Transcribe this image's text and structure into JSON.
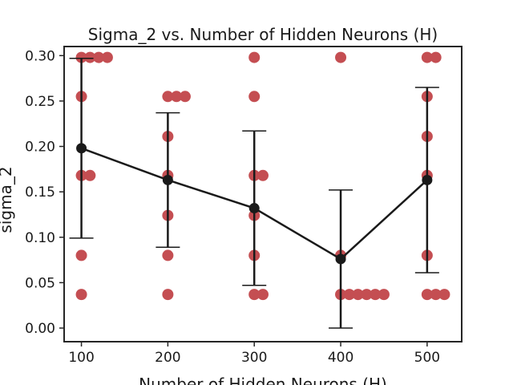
{
  "chart_data": {
    "type": "scatter",
    "title": "Sigma_2 vs. Number of Hidden Neurons (H)",
    "xlabel": "Number of Hidden Neurons (H)",
    "ylabel": "sigma_2",
    "xlim": [
      80,
      540
    ],
    "ylim": [
      -0.015,
      0.31
    ],
    "x_ticks": [
      100,
      200,
      300,
      400,
      500
    ],
    "y_ticks": [
      0.0,
      0.05,
      0.1,
      0.15,
      0.2,
      0.25,
      0.3
    ],
    "y_tick_labels": [
      "0.00",
      "0.05",
      "0.10",
      "0.15",
      "0.20",
      "0.25",
      "0.30"
    ],
    "grid": false,
    "legend": "none",
    "colors": {
      "points": "#c44e52",
      "mean": "#1a1a1a"
    },
    "raw_points": [
      {
        "x": 100,
        "y": 0.298
      },
      {
        "x": 110,
        "y": 0.298
      },
      {
        "x": 120,
        "y": 0.298
      },
      {
        "x": 130,
        "y": 0.298
      },
      {
        "x": 100,
        "y": 0.255
      },
      {
        "x": 100,
        "y": 0.168
      },
      {
        "x": 110,
        "y": 0.168
      },
      {
        "x": 100,
        "y": 0.08
      },
      {
        "x": 100,
        "y": 0.037
      },
      {
        "x": 200,
        "y": 0.255
      },
      {
        "x": 210,
        "y": 0.255
      },
      {
        "x": 220,
        "y": 0.255
      },
      {
        "x": 200,
        "y": 0.211
      },
      {
        "x": 200,
        "y": 0.168
      },
      {
        "x": 200,
        "y": 0.124
      },
      {
        "x": 200,
        "y": 0.08
      },
      {
        "x": 200,
        "y": 0.037
      },
      {
        "x": 300,
        "y": 0.298
      },
      {
        "x": 300,
        "y": 0.255
      },
      {
        "x": 300,
        "y": 0.168
      },
      {
        "x": 310,
        "y": 0.168
      },
      {
        "x": 300,
        "y": 0.124
      },
      {
        "x": 300,
        "y": 0.08
      },
      {
        "x": 300,
        "y": 0.037
      },
      {
        "x": 310,
        "y": 0.037
      },
      {
        "x": 400,
        "y": 0.298
      },
      {
        "x": 400,
        "y": 0.08
      },
      {
        "x": 400,
        "y": 0.037
      },
      {
        "x": 410,
        "y": 0.037
      },
      {
        "x": 420,
        "y": 0.037
      },
      {
        "x": 430,
        "y": 0.037
      },
      {
        "x": 440,
        "y": 0.037
      },
      {
        "x": 450,
        "y": 0.037
      },
      {
        "x": 500,
        "y": 0.298
      },
      {
        "x": 510,
        "y": 0.298
      },
      {
        "x": 500,
        "y": 0.255
      },
      {
        "x": 500,
        "y": 0.211
      },
      {
        "x": 500,
        "y": 0.168
      },
      {
        "x": 500,
        "y": 0.08
      },
      {
        "x": 500,
        "y": 0.037
      },
      {
        "x": 510,
        "y": 0.037
      },
      {
        "x": 520,
        "y": 0.037
      }
    ],
    "series": [
      {
        "x": [
          100,
          200,
          300,
          400,
          500
        ],
        "values": [
          0.198,
          0.163,
          0.132,
          0.076,
          0.163
        ],
        "error": [
          0.099,
          0.074,
          0.085,
          0.076,
          0.102
        ]
      }
    ]
  }
}
